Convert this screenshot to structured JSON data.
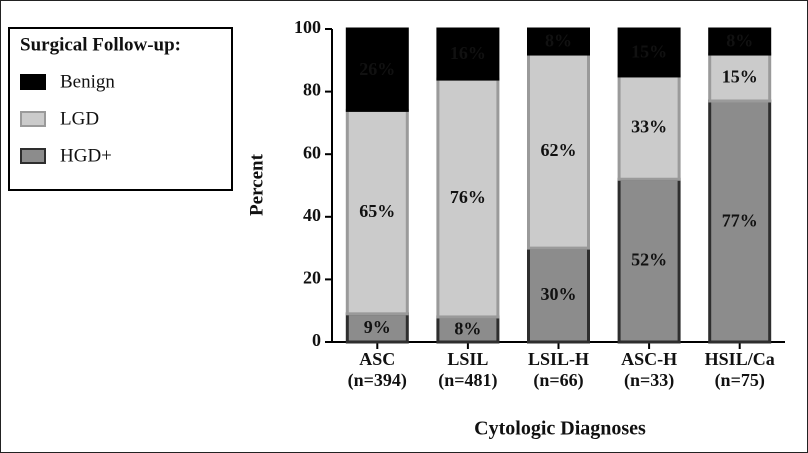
{
  "chart_data": {
    "type": "stacked_bar",
    "legend_title": "Surgical Follow-up:",
    "ylabel": "Percent",
    "xlabel": "Cytologic Diagnoses",
    "categories": [
      [
        "ASC",
        "(n=394)"
      ],
      [
        "LSIL",
        "(n=481)"
      ],
      [
        "LSIL-H",
        "(n=66)"
      ],
      [
        "ASC-H",
        "(n=33)"
      ],
      [
        "HSIL/Ca",
        "(n=75)"
      ]
    ],
    "series": [
      {
        "name": "HGD+",
        "color": "#8c8c8c",
        "edge": "#2e2e2e",
        "values": [
          9,
          8,
          30,
          52,
          77
        ],
        "value_labels": [
          "9%",
          "8%",
          "30%",
          "52%",
          "77%"
        ]
      },
      {
        "name": "LGD",
        "color": "#cbcbcb",
        "edge": "#9a9a9a",
        "values": [
          65,
          76,
          62,
          33,
          15
        ],
        "value_labels": [
          "65%",
          "76%",
          "62%",
          "33%",
          "15%"
        ]
      },
      {
        "name": "Benign",
        "color": "#000000",
        "edge": "#000000",
        "values": [
          26,
          16,
          8,
          15,
          8
        ],
        "value_labels": [
          "26%",
          "16%",
          "8%",
          "15%",
          "8%"
        ]
      }
    ],
    "ylim": [
      0,
      100
    ],
    "yticks": [
      0,
      20,
      40,
      60,
      80,
      100
    ]
  }
}
